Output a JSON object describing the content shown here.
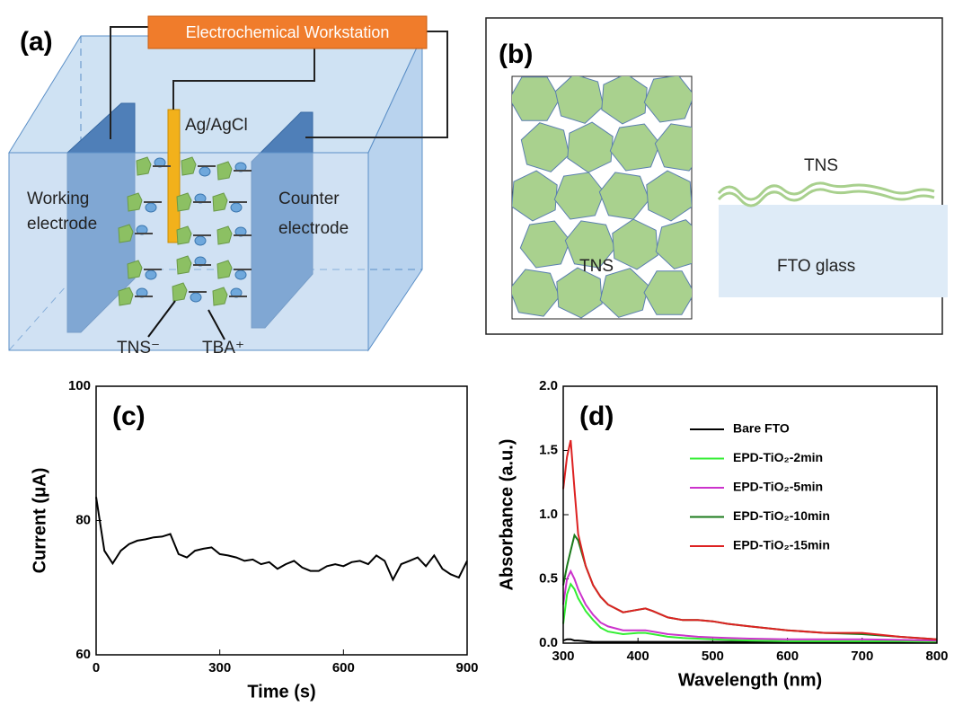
{
  "panels": {
    "a": {
      "label": "(a)",
      "workstation": "Electrochemical Workstation",
      "reference": "Ag/AgCl",
      "working": [
        "Working",
        "electrode"
      ],
      "counter": [
        "Counter",
        "electrode"
      ],
      "anion": "TNS⁻",
      "cation": "TBA⁺"
    },
    "b": {
      "label": "(b)",
      "film_label": "TNS",
      "layer_label": "TNS",
      "substrate": "FTO glass"
    }
  },
  "chart_data": [
    {
      "type": "line",
      "label": "(c)",
      "xlabel": "Time (s)",
      "ylabel": "Current (μA)",
      "color": "#000000",
      "x": [
        0,
        20,
        40,
        60,
        80,
        100,
        120,
        140,
        160,
        180,
        200,
        220,
        240,
        260,
        280,
        300,
        320,
        340,
        360,
        380,
        400,
        420,
        440,
        460,
        480,
        500,
        520,
        540,
        560,
        580,
        600,
        620,
        640,
        660,
        680,
        700,
        720,
        740,
        760,
        780,
        800,
        820,
        840,
        860,
        880,
        900
      ],
      "values": [
        83.5,
        75.5,
        73.6,
        75.5,
        76.5,
        77,
        77.2,
        77.5,
        77.6,
        78,
        75,
        74.5,
        75.5,
        75.8,
        76,
        75,
        74.8,
        74.5,
        74,
        74.2,
        73.5,
        73.8,
        72.8,
        73.5,
        74,
        73,
        72.5,
        72.5,
        73.2,
        73.5,
        73.2,
        73.8,
        74,
        73.5,
        74.8,
        74,
        71.2,
        73.5,
        74,
        74.5,
        73.2,
        74.8,
        72.8,
        72,
        71.5,
        74
      ],
      "xlim": [
        0,
        900
      ],
      "xticks": [
        0,
        300,
        600,
        900
      ],
      "ylim": [
        60,
        100
      ],
      "yticks": [
        60,
        80,
        100
      ]
    },
    {
      "type": "line",
      "label": "(d)",
      "xlabel": "Wavelength (nm)",
      "ylabel": "Absorbance (a.u.)",
      "legend": "upper right",
      "x": [
        300,
        305,
        310,
        315,
        320,
        330,
        340,
        350,
        360,
        380,
        400,
        410,
        420,
        440,
        460,
        480,
        500,
        520,
        550,
        600,
        650,
        700,
        750,
        800
      ],
      "series": [
        {
          "name": "Bare FTO",
          "color": "#000000",
          "values": [
            0.02,
            0.03,
            0.03,
            0.02,
            0.02,
            0.015,
            0.01,
            0.01,
            0.01,
            0.01,
            0.01,
            0.01,
            0.01,
            0.01,
            0.01,
            0.01,
            0.01,
            0.01,
            0.01,
            0.01,
            0.01,
            0.01,
            0.01,
            0.01
          ]
        },
        {
          "name": "EPD-TiO₂-2min",
          "color": "#33ee33",
          "values": [
            0.15,
            0.38,
            0.46,
            0.42,
            0.35,
            0.25,
            0.18,
            0.12,
            0.09,
            0.07,
            0.08,
            0.08,
            0.07,
            0.05,
            0.04,
            0.035,
            0.03,
            0.025,
            0.02,
            0.015,
            0.015,
            0.015,
            0.015,
            0.01
          ]
        },
        {
          "name": "EPD-TiO₂-5min",
          "color": "#cc33cc",
          "values": [
            0.3,
            0.5,
            0.56,
            0.5,
            0.42,
            0.3,
            0.22,
            0.16,
            0.13,
            0.1,
            0.1,
            0.1,
            0.09,
            0.07,
            0.06,
            0.05,
            0.045,
            0.04,
            0.035,
            0.03,
            0.03,
            0.03,
            0.025,
            0.02
          ]
        },
        {
          "name": "EPD-TiO₂-10min",
          "color": "#1a7a1a",
          "values": [
            0.45,
            0.6,
            0.72,
            0.84,
            0.8,
            0.6,
            0.45,
            0.36,
            0.3,
            0.24,
            0.26,
            0.27,
            0.25,
            0.2,
            0.18,
            0.18,
            0.17,
            0.15,
            0.13,
            0.1,
            0.08,
            0.07,
            0.05,
            0.03
          ]
        },
        {
          "name": "EPD-TiO₂-15min",
          "color": "#dd2222",
          "values": [
            1.2,
            1.45,
            1.58,
            1.2,
            0.85,
            0.6,
            0.45,
            0.36,
            0.3,
            0.24,
            0.26,
            0.27,
            0.25,
            0.2,
            0.18,
            0.18,
            0.17,
            0.15,
            0.13,
            0.1,
            0.08,
            0.08,
            0.05,
            0.03
          ]
        }
      ],
      "xlim": [
        300,
        800
      ],
      "xticks": [
        300,
        400,
        500,
        600,
        700,
        800
      ],
      "ylim": [
        0,
        2
      ],
      "yticks": [
        {
          "value": 0,
          "label": "0.0"
        },
        0.5,
        {
          "value": 1,
          "label": "1.0"
        },
        1.5,
        {
          "value": 2,
          "label": "2.0"
        }
      ]
    }
  ]
}
